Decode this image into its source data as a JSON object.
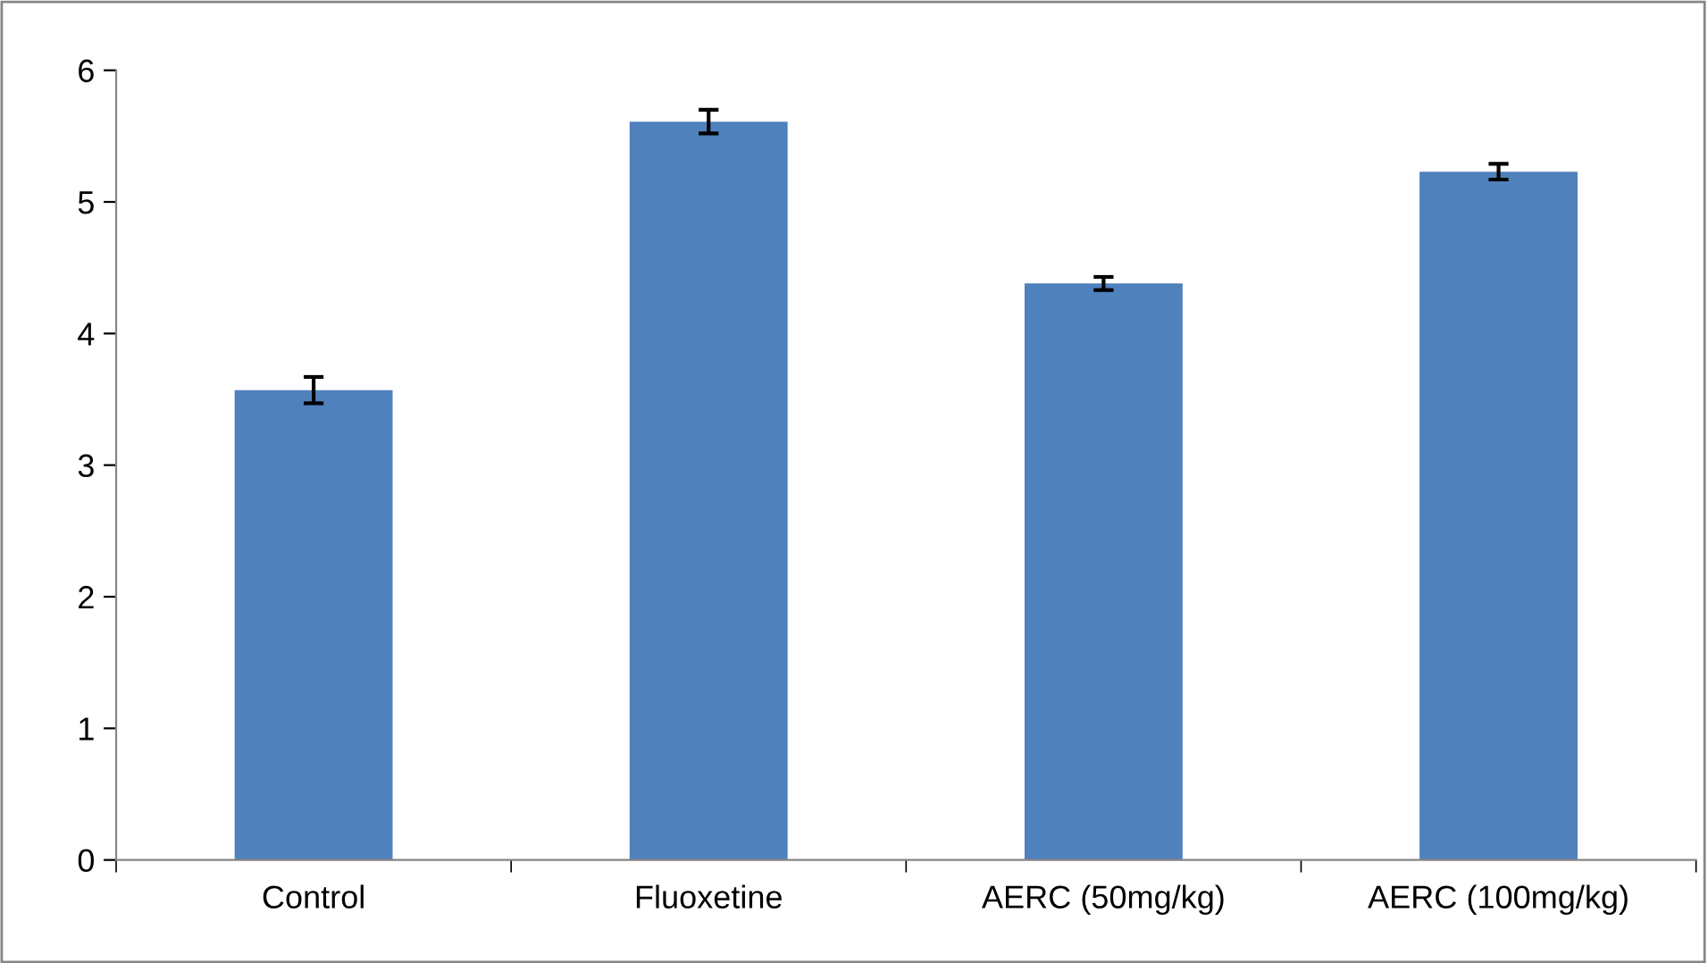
{
  "chart_data": {
    "type": "bar",
    "categories": [
      "Control",
      "Fluoxetine",
      "AERC (50mg/kg)",
      "AERC (100mg/kg)"
    ],
    "values": [
      3.57,
      5.61,
      4.38,
      5.23
    ],
    "errors": [
      0.1,
      0.09,
      0.05,
      0.06
    ],
    "color": "#4f81bd",
    "ylim": [
      0,
      6
    ],
    "yticks": [
      0,
      1,
      2,
      3,
      4,
      5,
      6
    ],
    "grid": false,
    "legend": false
  }
}
